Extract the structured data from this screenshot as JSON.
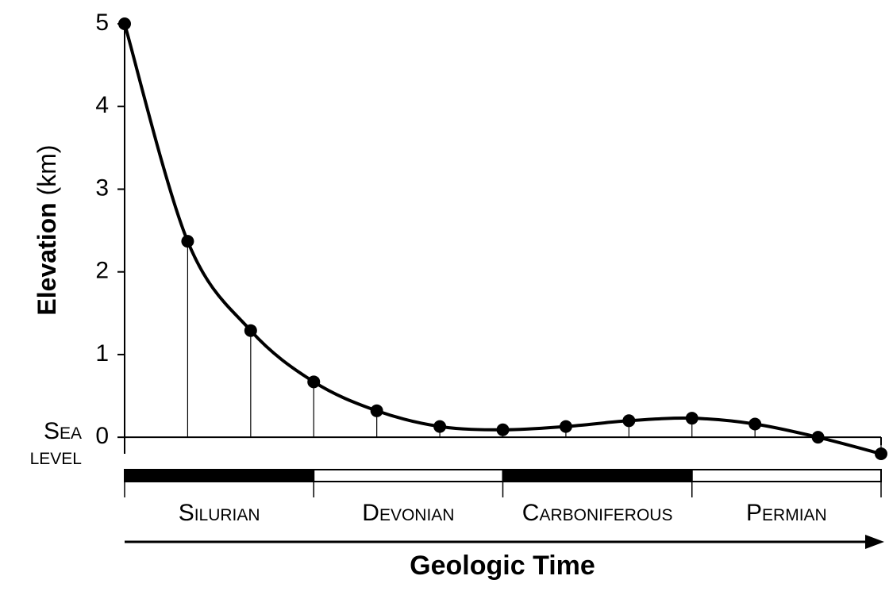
{
  "chart_data": {
    "type": "line",
    "y_label": "Elevation",
    "y_label_unit": "(km)",
    "x_label": "Geologic Time",
    "sea_level_label": [
      "Sea",
      "level"
    ],
    "categories": [
      null,
      null,
      null,
      null,
      null,
      null,
      null,
      null,
      null,
      null,
      null,
      null,
      null
    ],
    "series": [
      {
        "color": "#000000",
        "values": [
          5,
          2.37,
          1.29,
          0.67,
          0.32,
          0.13,
          0.09,
          0.13,
          0.2,
          0.23,
          0.16,
          0.0,
          -0.2
        ]
      }
    ],
    "ylim": [
      -0.2,
      5
    ],
    "yticks": [
      0,
      1,
      2,
      3,
      4,
      5
    ],
    "periods": [
      {
        "name": "Silurian",
        "fill": "#000000"
      },
      {
        "name": "Devonian",
        "fill": "#ffffff"
      },
      {
        "name": "Carboniferous",
        "fill": "#000000"
      },
      {
        "name": "Permian",
        "fill": "#ffffff"
      }
    ]
  }
}
